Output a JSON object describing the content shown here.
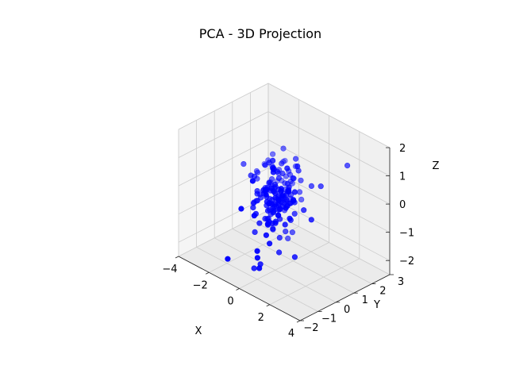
{
  "chart_data": {
    "type": "scatter",
    "projection": "3d",
    "title": "PCA - 3D Projection",
    "xlabel": "X",
    "ylabel": "Y",
    "zlabel": "Z",
    "xlim": [
      -4,
      4
    ],
    "ylim": [
      -2,
      3
    ],
    "zlim": [
      -2.5,
      2
    ],
    "xticks": [
      "−4",
      "−2",
      "0",
      "2",
      "4"
    ],
    "yticks": [
      "−2",
      "−1",
      "0",
      "1",
      "2",
      "3"
    ],
    "zticks": [
      "−2",
      "−1",
      "0",
      "1",
      "2"
    ],
    "grid": true,
    "marker_color": "#0000ff",
    "pane_color": "#f2f2f2",
    "grid_color": "#cccccc",
    "series": [
      {
        "points": [
          [
            -0.4,
            0.2,
            1.2
          ],
          [
            -0.5,
            0.6,
            -0.7
          ],
          [
            -1.0,
            1.7,
            -0.8
          ],
          [
            -0.6,
            0.1,
            -0.6
          ],
          [
            -1.7,
            1.8,
            -0.4
          ],
          [
            -0.3,
            0.5,
            -1.6
          ],
          [
            -0.6,
            1.5,
            0.1
          ],
          [
            -0.2,
            -1.0,
            -0.3
          ],
          [
            -0.6,
            0.5,
            0.2
          ],
          [
            -0.4,
            0.0,
            -0.9
          ],
          [
            0.0,
            -0.5,
            -1.1
          ],
          [
            -1.7,
            1.3,
            0.7
          ],
          [
            -1.0,
            0.9,
            -0.8
          ],
          [
            -0.5,
            1.0,
            -1.6
          ],
          [
            -1.1,
            0.9,
            -0.2
          ],
          [
            -1.0,
            1.8,
            -0.3
          ],
          [
            -1.0,
            -1.8,
            -1.8
          ],
          [
            -0.3,
            -0.3,
            0.3
          ],
          [
            -1.2,
            0.6,
            -1.4
          ],
          [
            0.7,
            0.5,
            -2.0
          ],
          [
            -1.0,
            1.3,
            1.1
          ],
          [
            -0.7,
            1.3,
            -2.0
          ],
          [
            -0.4,
            1.7,
            -0.4
          ],
          [
            -0.5,
            -0.4,
            -2.3
          ],
          [
            -0.1,
            0.7,
            -0.1
          ],
          [
            -1.3,
            1.7,
            -0.1
          ],
          [
            -2.4,
            1.0,
            0.0
          ],
          [
            -0.2,
            1.6,
            0.1
          ],
          [
            -0.9,
            1.1,
            -0.3
          ],
          [
            -0.1,
            -0.8,
            -2.2
          ],
          [
            -1.1,
            0.6,
            0.8
          ],
          [
            -0.8,
            -0.5,
            -2.5
          ],
          [
            0.1,
            1.0,
            -0.8
          ],
          [
            -1.3,
            1.1,
            -0.9
          ],
          [
            -2.2,
            0.1,
            0.6
          ],
          [
            0.4,
            0.0,
            0.5
          ],
          [
            -1.1,
            0.6,
            0.1
          ],
          [
            -1.3,
            0.8,
            -0.6
          ],
          [
            0.0,
            0.2,
            -0.1
          ],
          [
            -0.7,
            1.0,
            0.4
          ],
          [
            -0.4,
            1.8,
            -0.7
          ],
          [
            -0.6,
            0.7,
            -0.3
          ],
          [
            -0.4,
            0.6,
            -1.0
          ],
          [
            -0.6,
            1.2,
            0.0
          ],
          [
            -0.8,
            0.2,
            -0.5
          ],
          [
            -1.5,
            0.6,
            -0.3
          ],
          [
            -1.9,
            1.8,
            -0.2
          ],
          [
            0.7,
            1.0,
            -0.5
          ],
          [
            0.7,
            0.0,
            -0.1
          ],
          [
            0.6,
            0.3,
            -0.6
          ],
          [
            0.2,
            0.6,
            0.3
          ],
          [
            -1.9,
            0.4,
            -0.8
          ],
          [
            -0.7,
            -1.3,
            -0.1
          ],
          [
            -0.3,
            1.4,
            0.9
          ],
          [
            -2.2,
            1.7,
            -0.8
          ],
          [
            -0.1,
            0.1,
            -0.9
          ],
          [
            -1.7,
            1.3,
            0.2
          ],
          [
            -0.8,
            0.2,
            -0.2
          ],
          [
            0.1,
            1.0,
            -0.4
          ],
          [
            0.3,
            0.3,
            -0.9
          ],
          [
            -2.0,
            1.3,
            0.4
          ],
          [
            -0.3,
            1.0,
            -0.1
          ],
          [
            -2.2,
            1.7,
            0.0
          ],
          [
            -1.2,
            0.9,
            -1.1
          ],
          [
            -1.0,
            0.4,
            0.0
          ],
          [
            -0.3,
            -1.0,
            0.9
          ],
          [
            -0.1,
            -0.9,
            -1.8
          ],
          [
            0.1,
            -0.6,
            0.4
          ],
          [
            -0.5,
            0.1,
            -0.3
          ],
          [
            -1.0,
            0.6,
            -1.0
          ],
          [
            -1.6,
            0.3,
            -0.6
          ],
          [
            -1.4,
            1.7,
            -0.9
          ],
          [
            -2.6,
            1.6,
            0.0
          ],
          [
            -0.9,
            0.3,
            0.0
          ],
          [
            -1.3,
            0.3,
            -0.4
          ],
          [
            -0.9,
            0.7,
            0.6
          ],
          [
            -0.4,
            -0.2,
            0.3
          ],
          [
            0.0,
            -0.1,
            1.0
          ],
          [
            -0.7,
            0.8,
            -0.1
          ],
          [
            0.1,
            -0.4,
            -1.4
          ],
          [
            -1.1,
            -0.2,
            -1.4
          ],
          [
            -0.9,
            1.9,
            0.3
          ],
          [
            0.6,
            -0.9,
            -0.4
          ],
          [
            -1.4,
            0.2,
            -0.5
          ],
          [
            -1.0,
            1.3,
            -0.5
          ],
          [
            -0.1,
            0.3,
            -2.0
          ],
          [
            -0.4,
            0.7,
            -0.3
          ],
          [
            -0.6,
            0.2,
            -0.6
          ],
          [
            -1.3,
            1.1,
            -0.5
          ],
          [
            0.6,
            0.5,
            0.0
          ],
          [
            -0.5,
            0.3,
            0.9
          ],
          [
            -0.8,
            0.7,
            0.0
          ],
          [
            -1.0,
            1.7,
            -0.2
          ],
          [
            -1.0,
            1.6,
            0.2
          ],
          [
            -0.8,
            1.2,
            -1.0
          ],
          [
            -0.3,
            0.2,
            -0.4
          ],
          [
            -1.6,
            0.0,
            0.4
          ],
          [
            0.2,
            0.0,
            -0.5
          ],
          [
            -1.2,
            1.5,
            -0.7
          ],
          [
            -0.4,
            1.3,
            -1.7
          ],
          [
            -1.4,
            1.4,
            0.2
          ],
          [
            0.2,
            0.7,
            -0.9
          ],
          [
            -1.3,
            0.1,
            -0.2
          ],
          [
            1.2,
            1.0,
            -0.7
          ],
          [
            0.4,
            0.9,
            1.0
          ],
          [
            -0.9,
            0.2,
            -1.0
          ],
          [
            1.8,
            2.5,
            0.9
          ],
          [
            -0.9,
            1.3,
            -0.1
          ],
          [
            0.2,
            0.7,
            -0.3
          ],
          [
            -0.9,
            0.2,
            0.9
          ],
          [
            -2.3,
            1.7,
            -0.6
          ],
          [
            -0.2,
            0.2,
            -0.9
          ],
          [
            0.2,
            0.5,
            1.0
          ],
          [
            -1.6,
            1.9,
            0.3
          ],
          [
            0.7,
            0.5,
            0.3
          ],
          [
            -1.3,
            1.3,
            -1.0
          ],
          [
            -0.7,
            0.8,
            0.3
          ],
          [
            -1.4,
            0.0,
            -0.5
          ],
          [
            0.0,
            1.3,
            0.6
          ],
          [
            -1.6,
            0.2,
            0.3
          ],
          [
            -0.9,
            1.6,
            0.1
          ],
          [
            0.8,
            0.0,
            0.0
          ],
          [
            -2.1,
            0.8,
            0.1
          ],
          [
            -0.2,
            0.5,
            -0.3
          ],
          [
            0.0,
            -1.0,
            -1.5
          ],
          [
            -0.2,
            0.0,
            -0.9
          ],
          [
            -1.1,
            0.8,
            -1.6
          ],
          [
            -1.0,
            1.0,
            -0.6
          ],
          [
            -0.5,
            0.2,
            0.2
          ],
          [
            -1.9,
            0.6,
            0.0
          ],
          [
            -0.5,
            0.3,
            -1.3
          ],
          [
            0.4,
            0.3,
            0.0
          ],
          [
            -1.0,
            0.4,
            -1.1
          ],
          [
            -2.3,
            1.6,
            -0.6
          ],
          [
            -1.1,
            0.8,
            -0.9
          ],
          [
            -0.3,
            -0.2,
            -0.1
          ],
          [
            -1.4,
            1.5,
            -0.6
          ],
          [
            -1.4,
            1.0,
            0.0
          ],
          [
            0.0,
            0.4,
            0.0
          ],
          [
            -0.9,
            0.5,
            -0.1
          ],
          [
            -1.1,
            -0.3,
            -0.5
          ],
          [
            -0.9,
            1.1,
            -0.6
          ],
          [
            -1.3,
            0.1,
            -0.1
          ],
          [
            -0.7,
            1.0,
            -0.4
          ],
          [
            -0.6,
            0.1,
            -1.1
          ],
          [
            -0.8,
            1.4,
            -0.4
          ],
          [
            -1.2,
            1.2,
            -0.6
          ],
          [
            0.5,
            1.6,
            0.1
          ],
          [
            -1.0,
            1.2,
            0.6
          ],
          [
            0.0,
            0.5,
            -0.3
          ],
          [
            1.0,
            1.7,
            0.2
          ],
          [
            -1.6,
            1.8,
            0.3
          ],
          [
            -0.8,
            0.6,
            -0.8
          ],
          [
            -0.7,
            0.5,
            -0.8
          ],
          [
            -0.8,
            0.8,
            0.5
          ],
          [
            -1.6,
            1.4,
            -0.9
          ],
          [
            -0.7,
            0.5,
            0.7
          ],
          [
            -0.8,
            -0.2,
            -1.0
          ],
          [
            -0.2,
            1.2,
            0.3
          ],
          [
            -0.2,
            0.6,
            -0.5
          ],
          [
            -1.7,
            0.6,
            -0.5
          ],
          [
            -0.8,
            -0.4,
            -0.6
          ],
          [
            -0.6,
            0.7,
            -0.4
          ],
          [
            -1.6,
            1.3,
            -0.6
          ],
          [
            -1.6,
            0.8,
            -0.3
          ],
          [
            -1.3,
            1.1,
            -0.5
          ],
          [
            -1.7,
            0.8,
            -0.4
          ],
          [
            0.5,
            0.6,
            -0.1
          ],
          [
            -0.5,
            0.7,
            -0.7
          ],
          [
            -0.5,
            1.3,
            -0.4
          ],
          [
            -0.8,
            0.3,
            -1.0
          ],
          [
            -1.0,
            0.5,
            -0.6
          ],
          [
            -0.8,
            0.5,
            -0.4
          ],
          [
            -1.0,
            0.8,
            -0.7
          ],
          [
            -1.2,
            1.6,
            -0.5
          ],
          [
            -1.3,
            1.0,
            -0.4
          ],
          [
            -2.0,
            1.8,
            -0.5
          ],
          [
            -0.5,
            0.6,
            -0.9
          ],
          [
            -1.2,
            1.2,
            -0.9
          ],
          [
            -1.4,
            1.4,
            -1.0
          ],
          [
            -0.1,
            0.1,
            0.0
          ],
          [
            -0.4,
            1.1,
            -0.2
          ],
          [
            -1.2,
            1.7,
            -0.6
          ],
          [
            -0.7,
            0.4,
            -0.5
          ],
          [
            -0.6,
            1.1,
            -0.6
          ],
          [
            -0.3,
            0.5,
            -0.6
          ],
          [
            0.0,
            0.8,
            -0.4
          ],
          [
            -1.1,
            0.3,
            -0.2
          ],
          [
            -1.8,
            1.3,
            -0.4
          ],
          [
            -0.9,
            1.5,
            -0.4
          ],
          [
            -1.3,
            0.9,
            -0.8
          ],
          [
            -0.7,
            0.9,
            -0.2
          ]
        ]
      }
    ]
  }
}
